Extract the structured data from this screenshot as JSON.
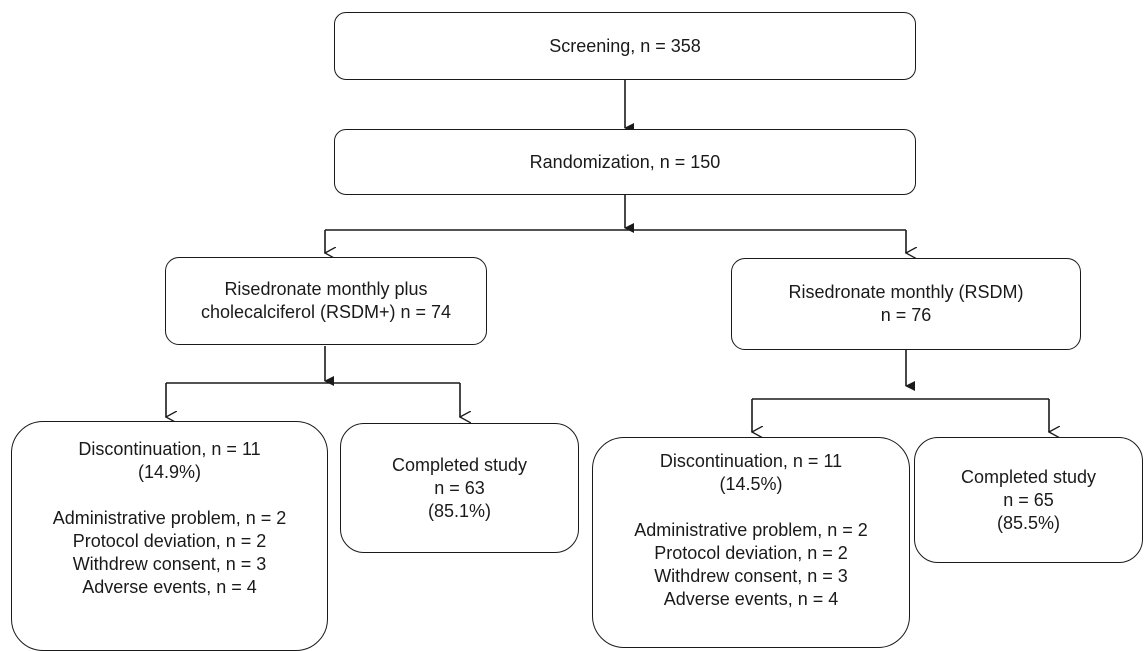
{
  "screening": {
    "text": "Screening, n = 358"
  },
  "randomization": {
    "text": "Randomization, n = 150"
  },
  "arm_rsdm_plus": {
    "line1": "Risedronate monthly plus",
    "line2": "cholecalciferol (RSDM+) n = 74",
    "discontinuation": {
      "title": "Discontinuation, n = 11",
      "percent": "(14.9%)",
      "reasons": [
        "Administrative problem, n = 2",
        "Protocol deviation, n = 2",
        "Withdrew consent, n = 3",
        "Adverse events, n = 4"
      ]
    },
    "completed": {
      "title": "Completed study",
      "n": "n = 63",
      "percent": "(85.1%)"
    }
  },
  "arm_rsdm": {
    "line1": "Risedronate monthly (RSDM)",
    "line2": "n = 76",
    "discontinuation": {
      "title": "Discontinuation, n = 11",
      "percent": "(14.5%)",
      "reasons": [
        "Administrative problem, n = 2",
        "Protocol deviation, n = 2",
        "Withdrew consent, n = 3",
        "Adverse events, n = 4"
      ]
    },
    "completed": {
      "title": "Completed study",
      "n": "n = 65",
      "percent": "(85.5%)"
    }
  }
}
